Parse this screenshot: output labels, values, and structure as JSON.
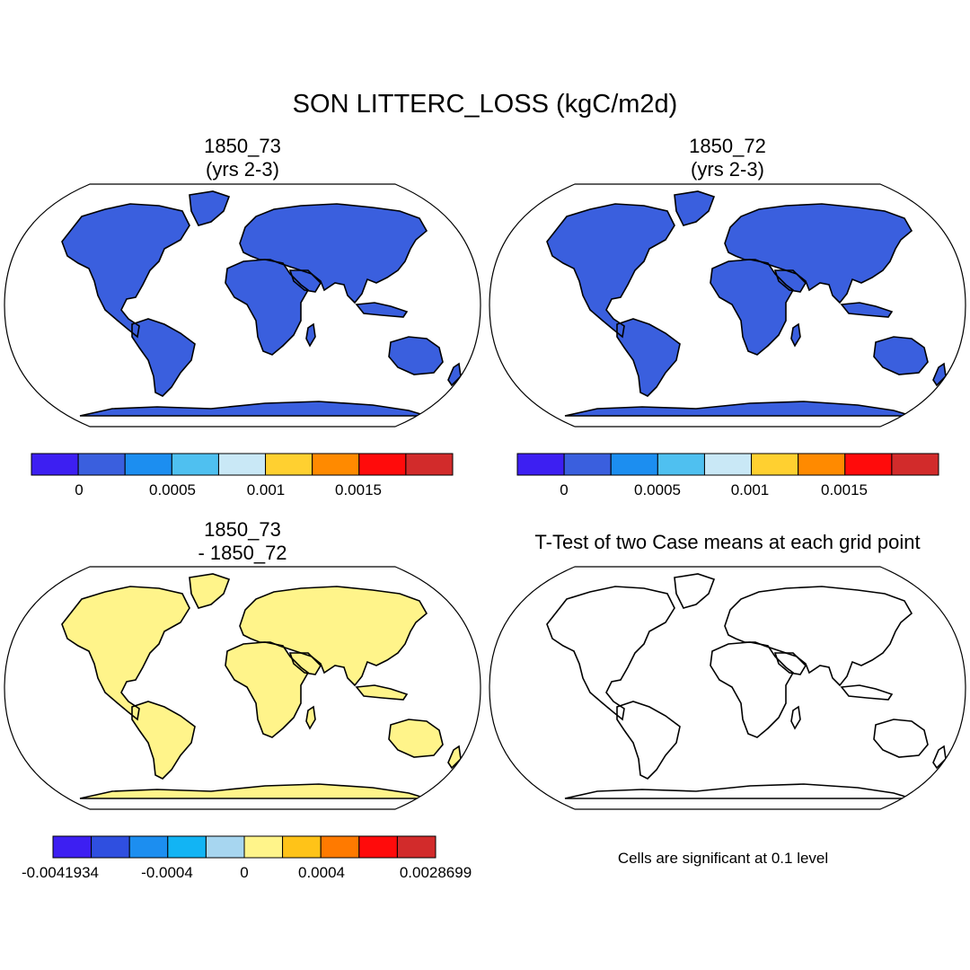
{
  "figure": {
    "title": "SON LITTERC_LOSS (kgC/m2d)",
    "note": "Cells are significant at 0.1 level"
  },
  "panels": [
    {
      "id": "case1",
      "title_lines": [
        "1850_73",
        "(yrs 2-3)"
      ]
    },
    {
      "id": "case2",
      "title_lines": [
        "1850_72",
        "(yrs 2-3)"
      ]
    },
    {
      "id": "diff",
      "title_lines": [
        "1850_73",
        "- 1850_72"
      ]
    },
    {
      "id": "ttest",
      "title_lines": [
        "T-Test of two Case means at each grid point"
      ]
    }
  ],
  "colorbars": [
    {
      "id": "cb-case1",
      "colors": [
        "#3d1ff2",
        "#3a5fde",
        "#1c8ef0",
        "#4fc0f0",
        "#c9e8f6",
        "#ffd030",
        "#ff8a00",
        "#ff0b0b",
        "#d22b2b"
      ],
      "tick_labels": [
        "0",
        "0.0005",
        "0.001",
        "0.0015"
      ]
    },
    {
      "id": "cb-case2",
      "colors": [
        "#3d1ff2",
        "#3a5fde",
        "#1c8ef0",
        "#4fc0f0",
        "#c9e8f6",
        "#ffd030",
        "#ff8a00",
        "#ff0b0b",
        "#d22b2b"
      ],
      "tick_labels": [
        "0",
        "0.0005",
        "0.001",
        "0.0015"
      ]
    },
    {
      "id": "cb-diff",
      "colors": [
        "#3d1ff2",
        "#2f4fe0",
        "#1c8ef0",
        "#12b4f4",
        "#a7d6f0",
        "#fff48a",
        "#ffc318",
        "#ff7a00",
        "#ff0b0b",
        "#d22b2b"
      ],
      "tick_labels": [
        "-0.0041934",
        "-0.0004",
        "0",
        "0.0004",
        "0.0028699"
      ]
    }
  ],
  "colors": {
    "land_case": "#3a5fde",
    "hot_case": "#e02a2a",
    "warm_case": "#ffa020",
    "land_diff": "#fff48a",
    "blue_diff": "#2f4fe0",
    "significant": "#ff0000"
  }
}
